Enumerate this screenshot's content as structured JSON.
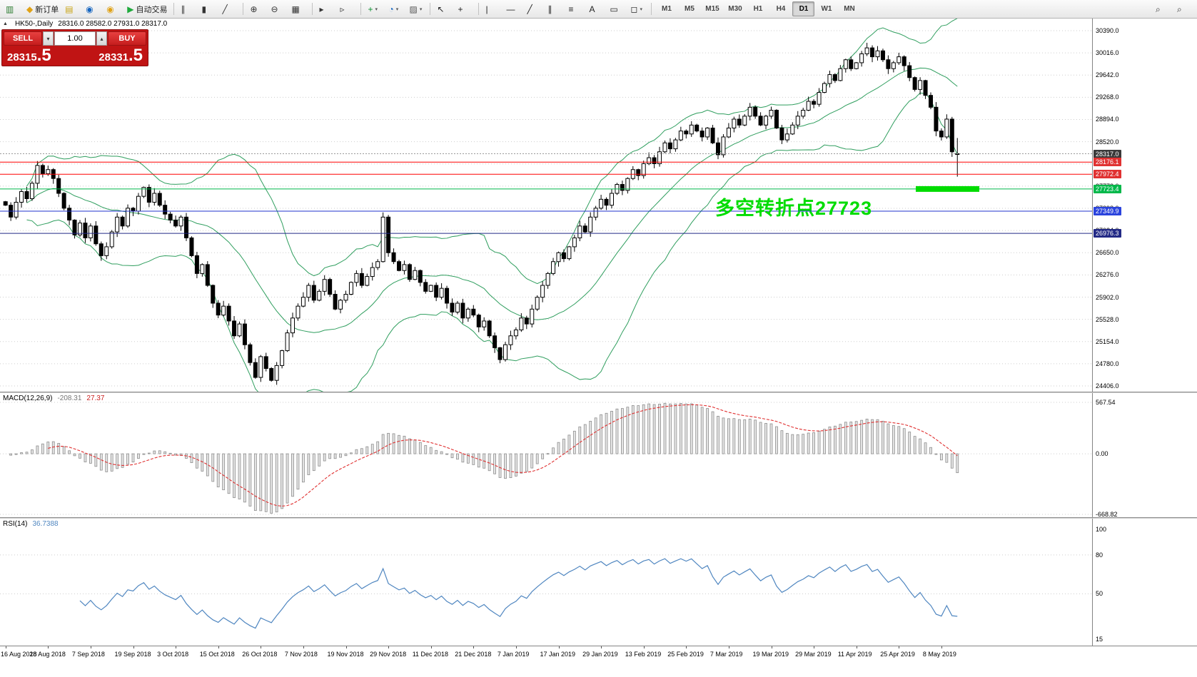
{
  "toolbar": {
    "groups": [
      {
        "items": [
          {
            "name": "terminal-icon",
            "glyph": "▥",
            "color": "#2e7d32"
          },
          {
            "name": "new-order-button",
            "glyph": "◆",
            "color": "#e0a216",
            "label": "新订单"
          },
          {
            "name": "charts-icon",
            "glyph": "▤",
            "color": "#c8a415"
          },
          {
            "name": "profile-icon",
            "glyph": "◉",
            "color": "#1565c0"
          },
          {
            "name": "help-icon",
            "glyph": "◉",
            "color": "#e0a216"
          },
          {
            "name": "autotrading-button",
            "glyph": "▶",
            "color": "#1faa3c",
            "label": "自动交易"
          }
        ]
      },
      {
        "items": [
          {
            "name": "bar-chart-icon",
            "glyph": "∥",
            "color": "#333333"
          },
          {
            "name": "candlestick-chart-icon",
            "glyph": "▮",
            "color": "#333333"
          },
          {
            "name": "line-chart-icon",
            "glyph": "╱",
            "color": "#333333"
          }
        ]
      },
      {
        "items": [
          {
            "name": "zoom-in-icon",
            "glyph": "⊕",
            "color": "#333333"
          },
          {
            "name": "zoom-out-icon",
            "glyph": "⊖",
            "color": "#333333"
          },
          {
            "name": "tile-windows-icon",
            "glyph": "▦",
            "color": "#333333"
          }
        ]
      },
      {
        "items": [
          {
            "name": "auto-scroll-icon",
            "glyph": "▸",
            "color": "#333333"
          },
          {
            "name": "chart-shift-icon",
            "glyph": "▹",
            "color": "#333333"
          }
        ]
      },
      {
        "items": [
          {
            "name": "indicators-icon",
            "glyph": "+",
            "color": "#0a8f2e",
            "caret": true
          },
          {
            "name": "periods-icon",
            "glyph": "◔",
            "color": "#1565c0",
            "caret": true
          },
          {
            "name": "templates-icon",
            "glyph": "▨",
            "color": "#555555",
            "caret": true
          }
        ]
      },
      {
        "items": [
          {
            "name": "cursor-icon",
            "glyph": "↖",
            "color": "#222222"
          },
          {
            "name": "crosshair-icon",
            "glyph": "+",
            "color": "#222222"
          }
        ]
      },
      {
        "items": [
          {
            "name": "vertical-line-icon",
            "glyph": "|",
            "color": "#222222"
          },
          {
            "name": "horizontal-line-icon",
            "glyph": "—",
            "color": "#222222"
          },
          {
            "name": "trendline-icon",
            "glyph": "╱",
            "color": "#222222"
          },
          {
            "name": "channel-icon",
            "glyph": "∥",
            "color": "#222222"
          },
          {
            "name": "fibonacci-icon",
            "glyph": "≡",
            "color": "#222222"
          },
          {
            "name": "text-icon",
            "glyph": "A",
            "color": "#222222"
          },
          {
            "name": "label-icon",
            "glyph": "▭",
            "color": "#222222"
          },
          {
            "name": "shapes-icon",
            "glyph": "◻",
            "color": "#222222",
            "caret": true
          }
        ]
      }
    ],
    "timeframes": [
      "M1",
      "M5",
      "M15",
      "M30",
      "H1",
      "H4",
      "D1",
      "W1",
      "MN"
    ],
    "active_timeframe": "D1",
    "right_icons": [
      {
        "name": "search-symbols-icon",
        "glyph": "⌕",
        "color": "#333333"
      },
      {
        "name": "search-icon",
        "glyph": "⌕",
        "color": "#333333"
      }
    ]
  },
  "chart_header": {
    "collapse_icon": "▲",
    "symbol": "HK50-,Daily",
    "ohlc": "28316.0 28582.0 27931.0 28317.0"
  },
  "trade_panel": {
    "sell_label": "SELL",
    "buy_label": "BUY",
    "volume": "1.00",
    "sell_price_main": "28315",
    "sell_price_big": ".5",
    "buy_price_main": "28331",
    "buy_price_big": ".5"
  },
  "macd_header": {
    "name": "MACD(12,26,9)",
    "value_main": "-208.31",
    "value_signal": "27.37"
  },
  "rsi_header": {
    "name": "RSI(14)",
    "value": "36.7388"
  },
  "annotation": {
    "text": "多空转折点27723",
    "color": "#00dc00"
  },
  "chart_data": {
    "type": "candlestick+indicators",
    "symbol": "HK50",
    "timeframe": "Daily",
    "ylim": [
      24310,
      30594
    ],
    "y_axis_labels": [
      "30390.0",
      "30016.0",
      "29642.0",
      "29268.0",
      "28894.0",
      "28520.0",
      "28146.0",
      "27772.0",
      "27398.0",
      "27024.0",
      "26650.0",
      "26276.0",
      "25902.0",
      "25528.0",
      "25154.0",
      "24780.0",
      "24406.0"
    ],
    "x_labels": [
      "16 Aug 2018",
      "28 Aug 2018",
      "7 Sep 2018",
      "19 Sep 2018",
      "3 Oct 2018",
      "15 Oct 2018",
      "26 Oct 2018",
      "7 Nov 2018",
      "19 Nov 2018",
      "29 Nov 2018",
      "11 Dec 2018",
      "21 Dec 2018",
      "7 Jan 2019",
      "17 Jan 2019",
      "29 Jan 2019",
      "13 Feb 2019",
      "25 Feb 2019",
      "7 Mar 2019",
      "19 Mar 2019",
      "29 Mar 2019",
      "11 Apr 2019",
      "25 Apr 2019",
      "8 May 2019"
    ],
    "x_label_step": 8,
    "closes": [
      27450,
      27250,
      27500,
      27680,
      27560,
      27820,
      28120,
      27980,
      28050,
      27900,
      27650,
      27400,
      27200,
      26950,
      27150,
      26900,
      27100,
      26800,
      26600,
      26750,
      27000,
      27250,
      27100,
      27400,
      27350,
      27600,
      27750,
      27500,
      27650,
      27450,
      27300,
      27200,
      27100,
      27250,
      26900,
      26600,
      26300,
      26450,
      26100,
      25800,
      25600,
      25750,
      25500,
      25250,
      25450,
      25100,
      24800,
      24550,
      24900,
      24700,
      24500,
      24750,
      25000,
      25300,
      25550,
      25750,
      25900,
      26100,
      25850,
      26000,
      26200,
      25950,
      25700,
      25850,
      25950,
      26150,
      26300,
      26100,
      26250,
      26400,
      26500,
      27250,
      26650,
      26500,
      26350,
      26450,
      26200,
      26350,
      26150,
      26000,
      26100,
      25900,
      26050,
      25800,
      25650,
      25800,
      25550,
      25700,
      25600,
      25400,
      25500,
      25250,
      25050,
      24850,
      25100,
      25250,
      25350,
      25550,
      25450,
      25700,
      25900,
      26100,
      26300,
      26500,
      26650,
      26550,
      26750,
      26900,
      27100,
      27000,
      27250,
      27400,
      27550,
      27450,
      27650,
      27800,
      27700,
      27900,
      28050,
      27950,
      28150,
      28250,
      28150,
      28350,
      28500,
      28400,
      28550,
      28700,
      28650,
      28800,
      28700,
      28600,
      28750,
      28500,
      28300,
      28600,
      28750,
      28900,
      28800,
      28950,
      29100,
      28950,
      28800,
      28950,
      29050,
      28750,
      28550,
      28650,
      28800,
      28950,
      29050,
      29200,
      29150,
      29350,
      29500,
      29650,
      29550,
      29750,
      29900,
      29750,
      29850,
      30000,
      30100,
      29950,
      30050,
      29900,
      29750,
      29850,
      29950,
      29800,
      29600,
      29400,
      29550,
      29300,
      29100,
      28700,
      28600,
      28900,
      28350,
      28317
    ],
    "last_ohlc": [
      28316.0,
      28582.0,
      27931.0,
      28317.0
    ],
    "candle_colors": {
      "up": "#ffffff",
      "down": "#000000",
      "wick": "#000000"
    },
    "bollinger": {
      "period": 20,
      "deviation": 2,
      "color": "#2f9e5e"
    },
    "levels": [
      {
        "price": 28317.0,
        "label": "28317.0",
        "bg": "#3a3a3a",
        "line": "#9a9a9a",
        "style": "dot"
      },
      {
        "price": 28176.1,
        "label": "28176.1",
        "bg": "#e03232",
        "line": "#ff0000",
        "style": "solid"
      },
      {
        "price": 27972.4,
        "label": "27972.4",
        "bg": "#e03232",
        "line": "#ff0000",
        "style": "solid"
      },
      {
        "price": 27723.4,
        "label": "27723.4",
        "bg": "#00b84a",
        "line": "#00b84a",
        "style": "solid"
      },
      {
        "price": 27349.9,
        "label": "27349.9",
        "bg": "#2b44dd",
        "line": "#2233cc",
        "style": "solid"
      },
      {
        "price": 26976.3,
        "label": "26976.3",
        "bg": "#232a86",
        "line": "#232a86",
        "style": "solid"
      }
    ],
    "highlight_bar": {
      "price": 27723.4,
      "x_from": 1283,
      "x_to": 1372,
      "thickness": 8,
      "color": "#00dc00"
    },
    "macd": {
      "params": [
        12,
        26,
        9
      ],
      "ylim": [
        -700,
        670
      ],
      "axis_labels": [
        "567.54",
        "0.00",
        "-668.82"
      ],
      "histogram_fill": "#e4e4e4",
      "histogram_stroke": "#8e8e8e",
      "signal_color": "#e03030"
    },
    "rsi": {
      "period": 14,
      "ylim": [
        10,
        108
      ],
      "axis_labels": [
        "100",
        "80",
        "50",
        "15"
      ],
      "levels": [
        80,
        50
      ],
      "color": "#4f86c0"
    }
  }
}
